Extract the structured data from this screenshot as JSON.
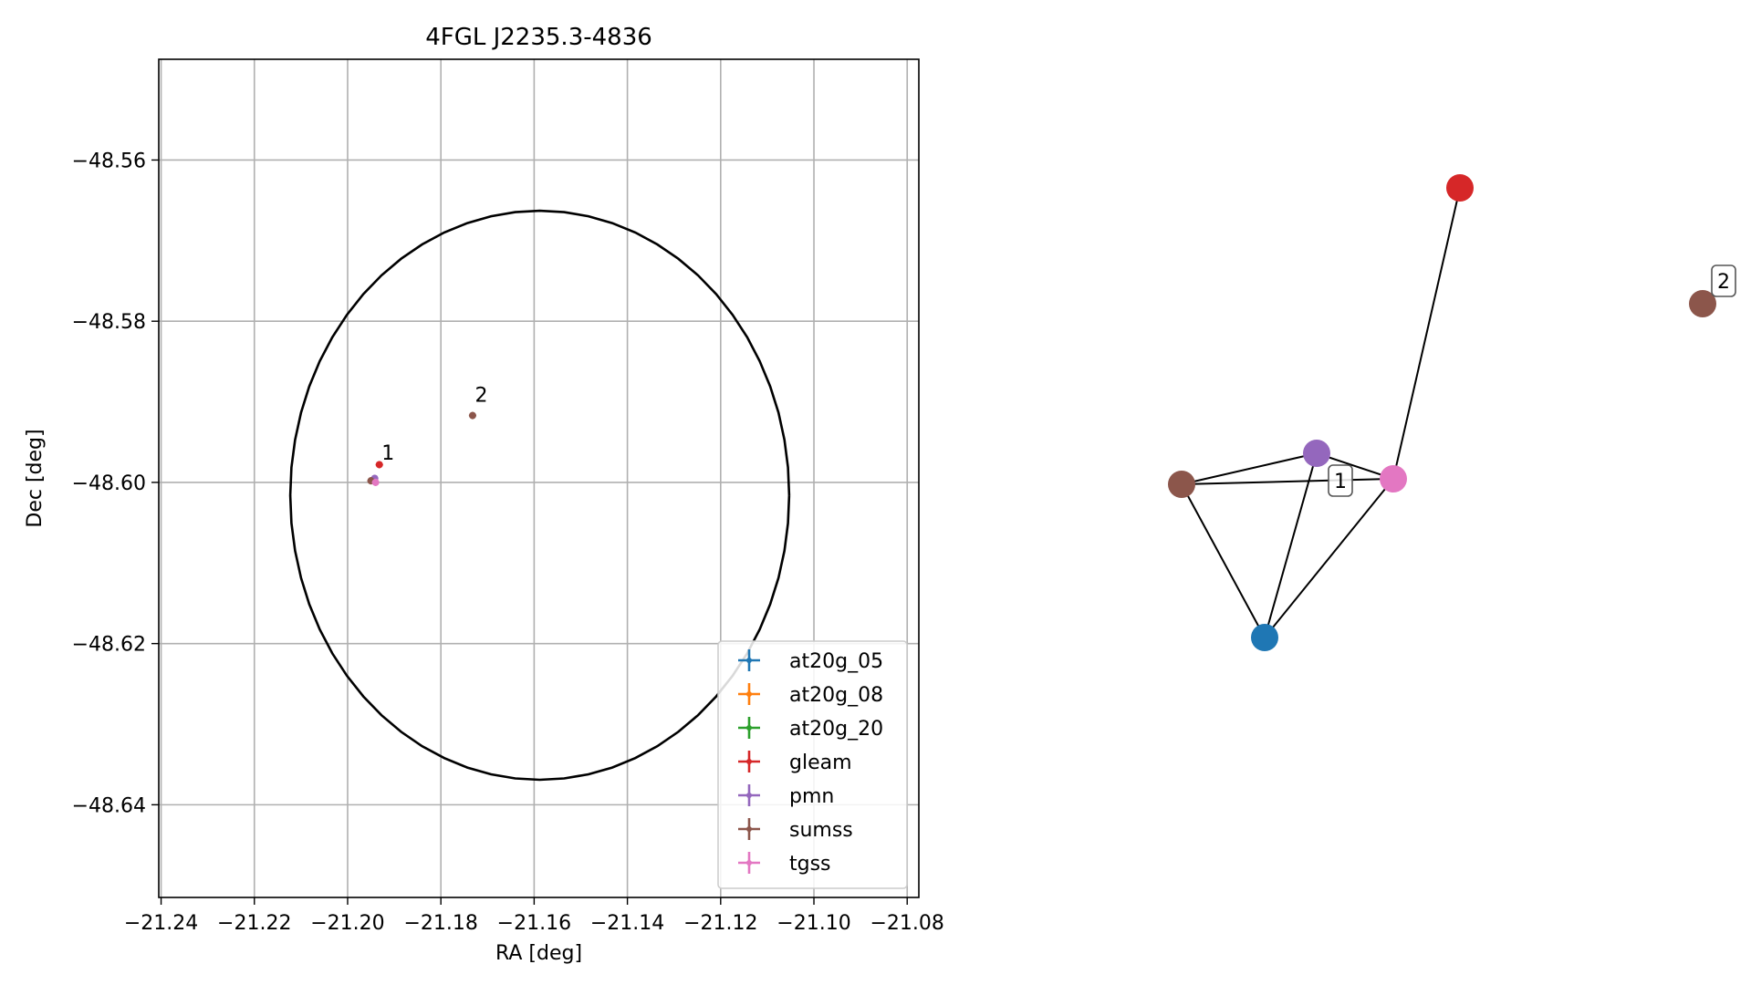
{
  "chart_data": [
    {
      "type": "scatter",
      "title": "4FGL J2235.3-4836",
      "xlabel": "RA [deg]",
      "ylabel": "Dec [deg]",
      "xlim": [
        -21.2405,
        -21.0775
      ],
      "ylim": [
        -48.6515,
        -48.5475
      ],
      "xticks": [
        -21.24,
        -21.22,
        -21.2,
        -21.18,
        -21.16,
        -21.14,
        -21.12,
        -21.1,
        -21.08
      ],
      "xtick_labels": [
        "−21.24",
        "−21.22",
        "−21.20",
        "−21.18",
        "−21.16",
        "−21.14",
        "−21.12",
        "−21.10",
        "−21.08"
      ],
      "yticks": [
        -48.56,
        -48.58,
        -48.6,
        -48.62,
        -48.64
      ],
      "ytick_labels": [
        "−48.56",
        "−48.58",
        "−48.60",
        "−48.62",
        "−48.64"
      ],
      "grid": true,
      "legend_position": "lower-right",
      "ellipse": {
        "center": [
          -21.1588,
          -48.6016
        ],
        "semi_axis_ra": 0.0535,
        "semi_axis_dec": 0.0353
      },
      "series": [
        {
          "name": "at20g_05",
          "color": "#1f77b4",
          "points": []
        },
        {
          "name": "at20g_08",
          "color": "#ff7f0e",
          "points": []
        },
        {
          "name": "at20g_20",
          "color": "#2ca02c",
          "points": []
        },
        {
          "name": "gleam",
          "color": "#d62728",
          "points": [
            [
              -21.1932,
              -48.5978
            ]
          ]
        },
        {
          "name": "pmn",
          "color": "#9467bd",
          "points": [
            [
              -21.1942,
              -48.5995
            ]
          ]
        },
        {
          "name": "sumss",
          "color": "#8c564b",
          "points": [
            [
              -21.195,
              -48.5998
            ],
            [
              -21.1732,
              -48.5917
            ]
          ]
        },
        {
          "name": "tgss",
          "color": "#e377c2",
          "points": [
            [
              -21.194,
              -48.6
            ]
          ]
        }
      ],
      "annotations": [
        {
          "text": "1",
          "x": -21.1927,
          "y": -48.5972
        },
        {
          "text": "2",
          "x": -21.1727,
          "y": -48.59
        }
      ]
    },
    {
      "type": "graph",
      "nodes": [
        {
          "id": "at20g_05",
          "color": "#1f77b4"
        },
        {
          "id": "gleam",
          "color": "#d62728"
        },
        {
          "id": "pmn",
          "color": "#9467bd"
        },
        {
          "id": "sumss_1",
          "color": "#8c564b"
        },
        {
          "id": "tgss",
          "color": "#e377c2"
        },
        {
          "id": "sumss_2",
          "color": "#8c564b"
        }
      ],
      "edges": [
        [
          "sumss_1",
          "pmn"
        ],
        [
          "sumss_1",
          "tgss"
        ],
        [
          "sumss_1",
          "at20g_05"
        ],
        [
          "pmn",
          "tgss"
        ],
        [
          "pmn",
          "at20g_05"
        ],
        [
          "tgss",
          "at20g_05"
        ],
        [
          "tgss",
          "gleam"
        ]
      ],
      "labels": [
        {
          "text": "1",
          "near": "pmn"
        },
        {
          "text": "2",
          "near": "sumss_2"
        }
      ]
    }
  ]
}
